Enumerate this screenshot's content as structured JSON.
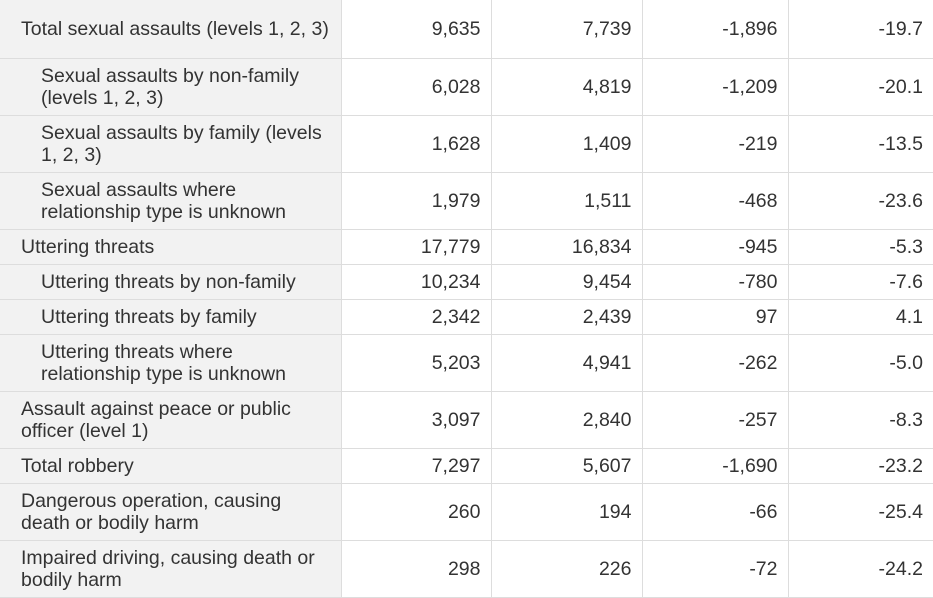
{
  "table": {
    "rows": [
      {
        "label": "Total sexual assaults (levels 1, 2, 3)",
        "indent": false,
        "values": [
          "9,635",
          "7,739",
          "-1,896",
          "-19.7"
        ]
      },
      {
        "label": "Sexual assaults by non-family (levels 1, 2, 3)",
        "indent": true,
        "values": [
          "6,028",
          "4,819",
          "-1,209",
          "-20.1"
        ]
      },
      {
        "label": "Sexual assaults by family (levels 1, 2, 3)",
        "indent": true,
        "values": [
          "1,628",
          "1,409",
          "-219",
          "-13.5"
        ]
      },
      {
        "label": "Sexual assaults where relationship type is unknown",
        "indent": true,
        "values": [
          "1,979",
          "1,511",
          "-468",
          "-23.6"
        ]
      },
      {
        "label": "Uttering threats",
        "indent": false,
        "values": [
          "17,779",
          "16,834",
          "-945",
          "-5.3"
        ]
      },
      {
        "label": "Uttering threats by non-family",
        "indent": true,
        "values": [
          "10,234",
          "9,454",
          "-780",
          "-7.6"
        ]
      },
      {
        "label": "Uttering threats by family",
        "indent": true,
        "values": [
          "2,342",
          "2,439",
          "97",
          "4.1"
        ]
      },
      {
        "label": "Uttering threats where relationship type is unknown",
        "indent": true,
        "values": [
          "5,203",
          "4,941",
          "-262",
          "-5.0"
        ]
      },
      {
        "label": "Assault against peace or public officer (level 1)",
        "indent": false,
        "values": [
          "3,097",
          "2,840",
          "-257",
          "-8.3"
        ]
      },
      {
        "label": "Total robbery",
        "indent": false,
        "values": [
          "7,297",
          "5,607",
          "-1,690",
          "-23.2"
        ]
      },
      {
        "label": "Dangerous operation, causing death or bodily harm",
        "indent": false,
        "values": [
          "260",
          "194",
          "-66",
          "-25.4"
        ]
      },
      {
        "label": "Impaired driving, causing death or bodily harm",
        "indent": false,
        "values": [
          "298",
          "226",
          "-72",
          "-24.2"
        ]
      }
    ]
  }
}
